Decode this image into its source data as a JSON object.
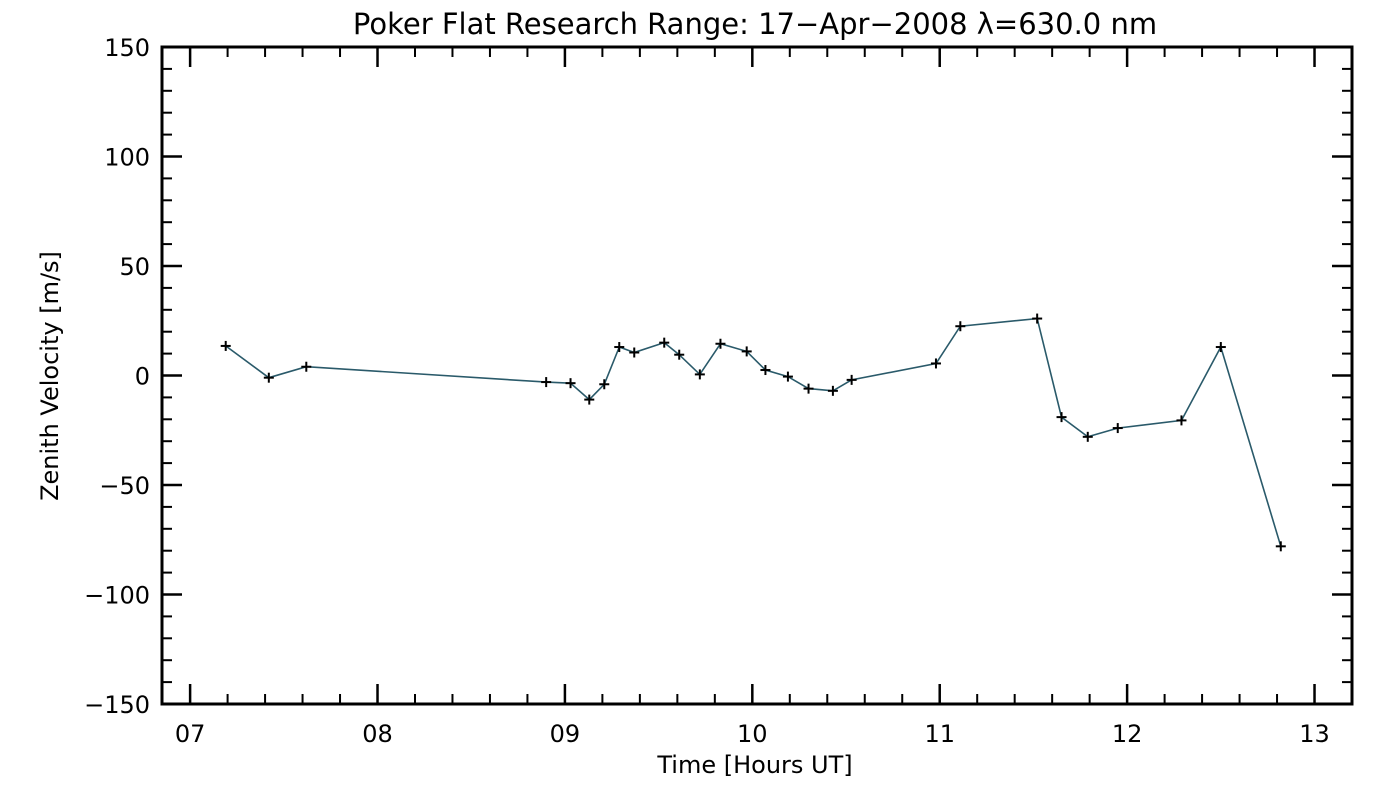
{
  "chart_data": {
    "type": "line",
    "title": "Poker Flat Research Range: 17−Apr−2008 λ=630.0 nm",
    "xlabel": "Time [Hours UT]",
    "ylabel": "Zenith Velocity [m/s]",
    "xlim": [
      6.85,
      13.2
    ],
    "ylim": [
      -150,
      150
    ],
    "x_ticks": [
      7,
      8,
      9,
      10,
      11,
      12,
      13
    ],
    "x_tick_labels": [
      "07",
      "08",
      "09",
      "10",
      "11",
      "12",
      "13"
    ],
    "y_ticks": [
      -150,
      -100,
      -50,
      0,
      50,
      100,
      150
    ],
    "y_tick_labels": [
      "−150",
      "−100",
      "−50",
      "0",
      "50",
      "100",
      "150"
    ],
    "grid": false,
    "series": [
      {
        "color": "#2a5a6a",
        "marker": "plus",
        "x": [
          7.19,
          7.42,
          7.62,
          8.9,
          9.03,
          9.13,
          9.21,
          9.29,
          9.37,
          9.53,
          9.61,
          9.72,
          9.83,
          9.97,
          10.07,
          10.19,
          10.3,
          10.43,
          10.53,
          10.98,
          11.11,
          11.52,
          11.65,
          11.79,
          11.95,
          12.29,
          12.5,
          12.82
        ],
        "y": [
          13.5,
          -1,
          4,
          -3,
          -3.5,
          -11,
          -4,
          13,
          10.5,
          15,
          9.5,
          0.5,
          14.5,
          11,
          2.5,
          -0.5,
          -6,
          -7,
          -2,
          5.5,
          22.5,
          26,
          -19,
          -28,
          -24,
          -20.5,
          13,
          -78
        ]
      }
    ]
  }
}
